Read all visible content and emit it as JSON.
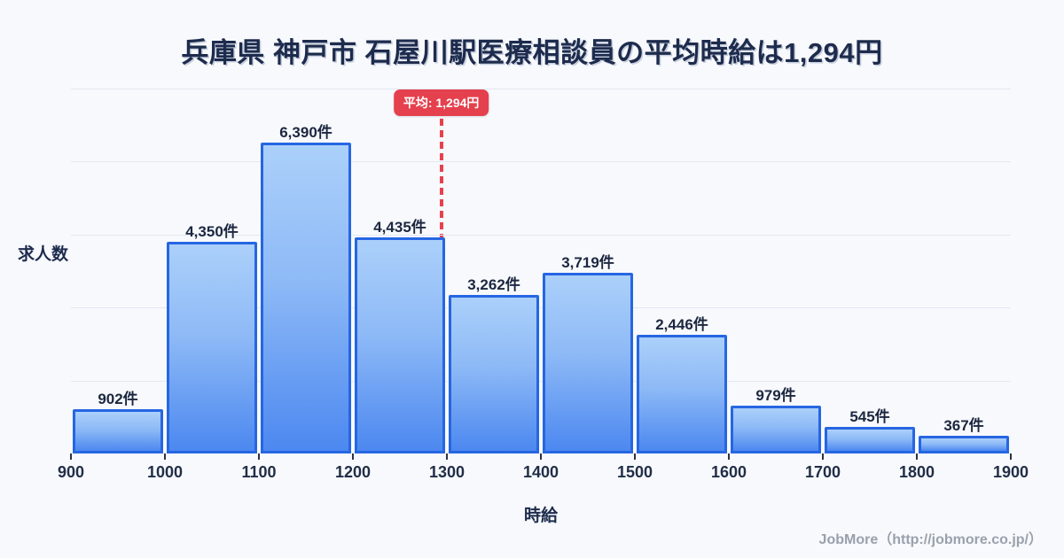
{
  "title": "兵庫県 神戸市 石屋川駅医療相談員の平均時給は1,294円",
  "footer": "JobMore（http://jobmore.co.jp/）",
  "chart_data": {
    "type": "bar",
    "title": "兵庫県 神戸市 石屋川駅医療相談員の平均時給は1,294円",
    "xlabel": "時給",
    "ylabel": "求人数",
    "bin_edges": [
      900,
      1000,
      1100,
      1200,
      1300,
      1400,
      1500,
      1600,
      1700,
      1800,
      1900
    ],
    "categories": [
      "900-1000",
      "1000-1100",
      "1100-1200",
      "1200-1300",
      "1300-1400",
      "1400-1500",
      "1500-1600",
      "1600-1700",
      "1700-1800",
      "1800-1900"
    ],
    "values": [
      902,
      4350,
      6390,
      4435,
      3262,
      3719,
      2446,
      979,
      545,
      367
    ],
    "value_unit": "件",
    "x_ticks": [
      900,
      1000,
      1100,
      1200,
      1300,
      1400,
      1500,
      1600,
      1700,
      1800,
      1900
    ],
    "ylim": [
      0,
      7500
    ],
    "gridline_step": 1500,
    "grid": true,
    "legend": false,
    "average": 1294,
    "average_label": "平均: 1,294円",
    "colors": {
      "bar_border": "#2666e3",
      "bar_gradient_top": "#abd0fa",
      "bar_gradient_bottom": "#4c88f0",
      "average_marker": "#e8414d",
      "title_text": "#1d2b4d",
      "gridline": "#e3e9f2",
      "footer_text": "#9aa1ac",
      "background": "#f7f9fc"
    }
  }
}
